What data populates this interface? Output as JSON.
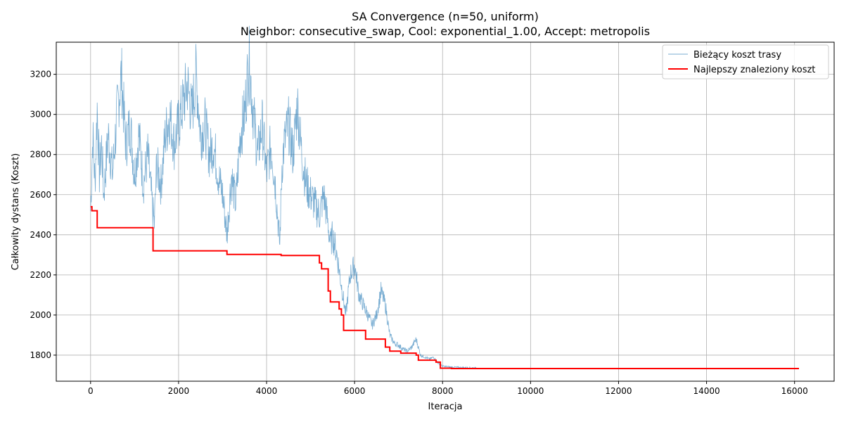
{
  "chart_data": {
    "type": "line",
    "title": "SA Convergence (n=50, uniform)",
    "subtitle": "Neighbor: consecutive_swap, Cool: exponential_1.00, Accept: metropolis",
    "xlabel": "Iteracja",
    "ylabel": "Całkowity dystans (Koszt)",
    "xlim": [
      -780,
      16900
    ],
    "ylim": [
      1670,
      3360
    ],
    "xticks": [
      0,
      2000,
      4000,
      6000,
      8000,
      10000,
      12000,
      14000,
      16000
    ],
    "yticks": [
      1800,
      2000,
      2200,
      2400,
      2600,
      2800,
      3000,
      3200
    ],
    "grid": true,
    "legend_position": "top-right",
    "series": [
      {
        "name": "Bieżący koszt trasy",
        "color": "#1f77b4",
        "style": "thin-translucent",
        "x": [
          0,
          50,
          100,
          150,
          200,
          250,
          300,
          400,
          500,
          600,
          700,
          800,
          900,
          1000,
          1100,
          1200,
          1300,
          1400,
          1450,
          1500,
          1600,
          1700,
          1800,
          1900,
          2000,
          2100,
          2200,
          2300,
          2400,
          2500,
          2600,
          2700,
          2800,
          2900,
          3000,
          3100,
          3200,
          3300,
          3400,
          3500,
          3600,
          3700,
          3800,
          3900,
          4000,
          4100,
          4200,
          4300,
          4350,
          4400,
          4500,
          4600,
          4700,
          4800,
          4900,
          5000,
          5100,
          5200,
          5300,
          5400,
          5450,
          5500,
          5600,
          5700,
          5800,
          5900,
          6000,
          6100,
          6200,
          6300,
          6400,
          6500,
          6600,
          6700,
          6800,
          6900,
          7000,
          7100,
          7200,
          7300,
          7400,
          7500,
          7600,
          7700,
          7800,
          7900,
          8000,
          8200,
          8500,
          8800
        ],
        "y": [
          2520,
          2900,
          2650,
          3040,
          2700,
          2850,
          2600,
          2900,
          2700,
          3000,
          3200,
          2850,
          2950,
          2700,
          2900,
          2650,
          2800,
          2550,
          2450,
          2750,
          2650,
          2900,
          3000,
          2850,
          2950,
          3050,
          3150,
          3000,
          3200,
          2900,
          2950,
          2800,
          2850,
          2700,
          2600,
          2400,
          2700,
          2550,
          2900,
          3000,
          3280,
          3000,
          2800,
          2950,
          2700,
          2850,
          2650,
          2350,
          2750,
          2850,
          2950,
          2800,
          3050,
          2800,
          2650,
          2600,
          2550,
          2500,
          2600,
          2450,
          2350,
          2400,
          2300,
          2150,
          2000,
          2200,
          2250,
          2100,
          2050,
          2000,
          1950,
          2000,
          2120,
          2050,
          1900,
          1860,
          1850,
          1830,
          1820,
          1840,
          1880,
          1800,
          1790,
          1780,
          1790,
          1760,
          1745,
          1740,
          1738,
          1736
        ]
      },
      {
        "name": "Najlepszy znaleziony koszt",
        "color": "#ff0000",
        "style": "step",
        "x": [
          0,
          30,
          150,
          1420,
          3100,
          4330,
          5200,
          5250,
          5400,
          5450,
          5480,
          5650,
          5700,
          5750,
          6250,
          6700,
          6800,
          7050,
          7400,
          7450,
          7850,
          7950,
          8200,
          16100
        ],
        "y": [
          2540,
          2520,
          2435,
          2320,
          2302,
          2297,
          2260,
          2230,
          2120,
          2065,
          2065,
          2030,
          2000,
          1923,
          1880,
          1840,
          1820,
          1810,
          1800,
          1775,
          1765,
          1735,
          1733,
          1733
        ]
      }
    ]
  }
}
